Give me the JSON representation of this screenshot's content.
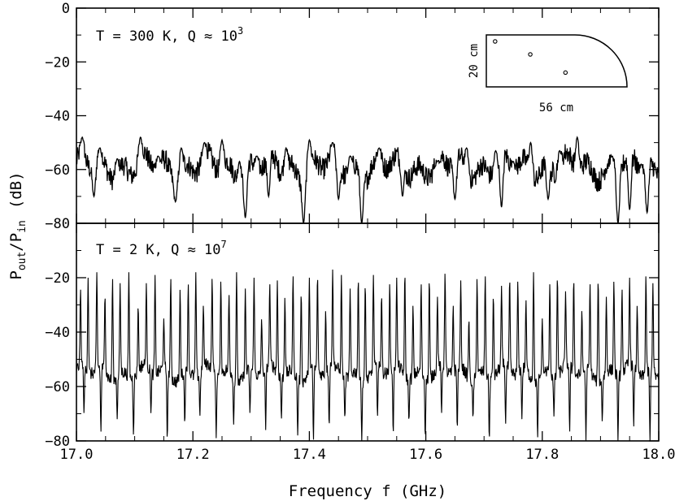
{
  "chart_data": [
    {
      "type": "line",
      "annotation": "T = 300 K,  Q ≈ 10",
      "annotation_exponent": "3",
      "ylim": [
        -80,
        0
      ],
      "xlim": [
        17.0,
        18.0
      ],
      "yticks": [
        0,
        -20,
        -40,
        -60,
        -80
      ],
      "ytick_labels": [
        "0",
        "−20",
        "−40",
        "−60",
        "−80"
      ],
      "baseline": -59,
      "noise_amp": 5,
      "series": [
        {
          "peaks": [
            [
              17.01,
              -48
            ],
            [
              17.04,
              -52
            ],
            [
              17.07,
              -56
            ],
            [
              17.11,
              -48
            ],
            [
              17.14,
              -55
            ],
            [
              17.18,
              -52
            ],
            [
              17.22,
              -50
            ],
            [
              17.25,
              -49
            ],
            [
              17.28,
              -57
            ],
            [
              17.31,
              -55
            ],
            [
              17.36,
              -52
            ],
            [
              17.4,
              -49
            ],
            [
              17.44,
              -50
            ],
            [
              17.47,
              -55
            ],
            [
              17.52,
              -52
            ],
            [
              17.56,
              -54
            ],
            [
              17.62,
              -57
            ],
            [
              17.67,
              -52
            ],
            [
              17.72,
              -53
            ],
            [
              17.75,
              -57
            ],
            [
              17.78,
              -50
            ],
            [
              17.83,
              -53
            ],
            [
              17.86,
              -48
            ],
            [
              17.92,
              -55
            ],
            [
              17.97,
              -58
            ]
          ],
          "dips": [
            [
              17.03,
              -70
            ],
            [
              17.17,
              -72
            ],
            [
              17.29,
              -78
            ],
            [
              17.33,
              -70
            ],
            [
              17.39,
              -80
            ],
            [
              17.45,
              -71
            ],
            [
              17.49,
              -80
            ],
            [
              17.56,
              -70
            ],
            [
              17.65,
              -71
            ],
            [
              17.73,
              -74
            ],
            [
              17.81,
              -71
            ],
            [
              17.93,
              -80
            ],
            [
              17.95,
              -75
            ],
            [
              17.98,
              -76
            ]
          ]
        }
      ]
    },
    {
      "type": "line",
      "annotation": "T = 2 K,  Q ≈ 10",
      "annotation_exponent": "7",
      "ylim": [
        -80,
        0
      ],
      "xlim": [
        17.0,
        18.0
      ],
      "yticks": [
        -20,
        -40,
        -60,
        -80
      ],
      "ytick_labels": [
        "−20",
        "−40",
        "−60",
        "−80"
      ],
      "baseline": -55,
      "noise_amp": 3,
      "series": [
        {
          "peaks": [
            [
              17.007,
              -24
            ],
            [
              17.02,
              -20
            ],
            [
              17.035,
              -18
            ],
            [
              17.049,
              -26
            ],
            [
              17.062,
              -20
            ],
            [
              17.075,
              -22
            ],
            [
              17.09,
              -18
            ],
            [
              17.106,
              -30
            ],
            [
              17.12,
              -22
            ],
            [
              17.135,
              -19
            ],
            [
              17.15,
              -35
            ],
            [
              17.162,
              -20
            ],
            [
              17.178,
              -24
            ],
            [
              17.192,
              -22
            ],
            [
              17.205,
              -18
            ],
            [
              17.218,
              -30
            ],
            [
              17.233,
              -20
            ],
            [
              17.248,
              -21
            ],
            [
              17.262,
              -26
            ],
            [
              17.275,
              -18
            ],
            [
              17.29,
              -24
            ],
            [
              17.305,
              -20
            ],
            [
              17.318,
              -35
            ],
            [
              17.332,
              -22
            ],
            [
              17.345,
              -21
            ],
            [
              17.358,
              -27
            ],
            [
              17.372,
              -19
            ],
            [
              17.386,
              -25
            ],
            [
              17.4,
              -20
            ],
            [
              17.414,
              -19
            ],
            [
              17.428,
              -32
            ],
            [
              17.44,
              -17
            ],
            [
              17.455,
              -19
            ],
            [
              17.47,
              -24
            ],
            [
              17.484,
              -20
            ],
            [
              17.496,
              -22
            ],
            [
              17.51,
              -19
            ],
            [
              17.524,
              -26
            ],
            [
              17.538,
              -22
            ],
            [
              17.55,
              -20
            ],
            [
              17.564,
              -18
            ],
            [
              17.578,
              -30
            ],
            [
              17.592,
              -22
            ],
            [
              17.606,
              -20
            ],
            [
              17.62,
              -27
            ],
            [
              17.633,
              -18
            ],
            [
              17.647,
              -30
            ],
            [
              17.66,
              -21
            ],
            [
              17.674,
              -35
            ],
            [
              17.688,
              -20
            ],
            [
              17.702,
              -19
            ],
            [
              17.716,
              -26
            ],
            [
              17.73,
              -23
            ],
            [
              17.744,
              -20
            ],
            [
              17.758,
              -21
            ],
            [
              17.772,
              -28
            ],
            [
              17.785,
              -18
            ],
            [
              17.8,
              -35
            ],
            [
              17.813,
              -22
            ],
            [
              17.826,
              -19
            ],
            [
              17.84,
              -25
            ],
            [
              17.854,
              -20
            ],
            [
              17.868,
              -32
            ],
            [
              17.882,
              -22
            ],
            [
              17.896,
              -20
            ],
            [
              17.91,
              -27
            ],
            [
              17.923,
              -21
            ],
            [
              17.937,
              -24
            ],
            [
              17.95,
              -20
            ],
            [
              17.963,
              -30
            ],
            [
              17.978,
              -19
            ],
            [
              17.99,
              -22
            ]
          ],
          "dips": [
            [
              17.013,
              -70
            ],
            [
              17.042,
              -77
            ],
            [
              17.07,
              -72
            ],
            [
              17.098,
              -78
            ],
            [
              17.128,
              -70
            ],
            [
              17.156,
              -80
            ],
            [
              17.186,
              -74
            ],
            [
              17.212,
              -71
            ],
            [
              17.24,
              -79
            ],
            [
              17.27,
              -74
            ],
            [
              17.298,
              -70
            ],
            [
              17.325,
              -76
            ],
            [
              17.352,
              -72
            ],
            [
              17.38,
              -78
            ],
            [
              17.407,
              -80
            ],
            [
              17.434,
              -75
            ],
            [
              17.461,
              -72
            ],
            [
              17.49,
              -80
            ],
            [
              17.517,
              -71
            ],
            [
              17.544,
              -78
            ],
            [
              17.571,
              -73
            ],
            [
              17.599,
              -79
            ],
            [
              17.627,
              -70
            ],
            [
              17.654,
              -76
            ],
            [
              17.681,
              -72
            ],
            [
              17.709,
              -80
            ],
            [
              17.737,
              -74
            ],
            [
              17.765,
              -72
            ],
            [
              17.792,
              -79
            ],
            [
              17.82,
              -71
            ],
            [
              17.847,
              -77
            ],
            [
              17.875,
              -80
            ],
            [
              17.903,
              -73
            ],
            [
              17.93,
              -80
            ],
            [
              17.957,
              -75
            ],
            [
              17.985,
              -80
            ]
          ]
        }
      ]
    }
  ],
  "x_tick_values": [
    17.0,
    17.2,
    17.4,
    17.6,
    17.8,
    18.0
  ],
  "x_tick_labels": [
    "17.0",
    "17.2",
    "17.4",
    "17.6",
    "17.8",
    "18.0"
  ],
  "x_axis_label": "Frequency f (GHz)",
  "y_axis_label": {
    "p": "P",
    "out": "out",
    "slash": "/P",
    "in": "in",
    "unit": "(dB)"
  },
  "inset": {
    "width_label": "56 cm",
    "height_label": "20 cm",
    "width_cm": 56,
    "height_cm": 20,
    "points_cm": [
      [
        3.5,
        17.5
      ],
      [
        17.5,
        12.5
      ],
      [
        31.5,
        5.5
      ]
    ]
  }
}
